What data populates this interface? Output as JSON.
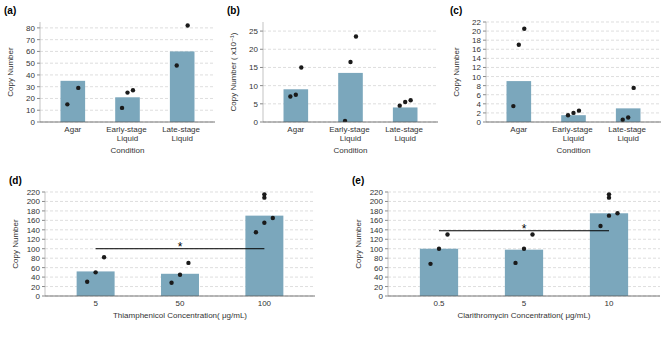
{
  "chart_data": [
    {
      "type": "bar",
      "title": "(a)",
      "categories": [
        "Agar",
        "Early-stage Liquid",
        "Late-stage Liquid"
      ],
      "values": [
        35,
        21,
        60
      ],
      "dots": [
        [
          15,
          29
        ],
        [
          12,
          25,
          27
        ],
        [
          48,
          82
        ]
      ],
      "xlabel": "Condition",
      "ylabel": "Copy Number",
      "ylim": [
        0,
        85
      ],
      "yticks": [
        0,
        10,
        20,
        30,
        40,
        50,
        60,
        70,
        80
      ],
      "color": "#7ba7bc",
      "grid": true
    },
    {
      "type": "bar",
      "title": "(b)",
      "categories": [
        "Agar",
        "Early-stage Liquid",
        "Late-stage Liquid"
      ],
      "values": [
        9,
        13.5,
        4
      ],
      "dots": [
        [
          7,
          7.5,
          15
        ],
        [
          0.3,
          16.5,
          23.5
        ],
        [
          4.5,
          5.5,
          6
        ]
      ],
      "xlabel": "Condition",
      "ylabel": "Copy Number  ( x10⁻¹)",
      "ylim": [
        0,
        27.5
      ],
      "yticks": [
        0,
        5,
        10,
        15,
        20,
        25
      ],
      "color": "#7ba7bc",
      "grid": true
    },
    {
      "type": "bar",
      "title": "(c)",
      "categories": [
        "Agar",
        "Early-stage Liquid",
        "Late-stage Liquid"
      ],
      "values": [
        9,
        1.5,
        3
      ],
      "dots": [
        [
          3.5,
          17,
          20.5
        ],
        [
          1.5,
          2,
          2.5
        ],
        [
          0.5,
          1,
          7.5
        ]
      ],
      "xlabel": "Condition",
      "ylabel": "Copy Number",
      "ylim": [
        0,
        22
      ],
      "yticks": [
        0,
        2,
        4,
        6,
        8,
        10,
        12,
        14,
        16,
        18,
        20,
        22
      ],
      "color": "#7ba7bc",
      "grid": true
    },
    {
      "type": "bar",
      "title": "(d)",
      "categories": [
        "5",
        "50",
        "100"
      ],
      "values": [
        52,
        47,
        170
      ],
      "dots": [
        [
          30,
          50,
          82
        ],
        [
          28,
          45,
          70
        ],
        [
          135,
          155,
          165
        ]
      ],
      "xlabel": "Thiamphenicol Concentration( μg/mL)",
      "ylabel": "Copy Number",
      "ylim": [
        0,
        220
      ],
      "yticks": [
        0,
        20,
        40,
        60,
        80,
        100,
        120,
        140,
        160,
        180,
        200,
        220
      ],
      "color": "#7ba7bc",
      "grid": true,
      "bracket": {
        "from": 0,
        "to": 2,
        "y": 100
      },
      "annotations": [
        {
          "text": "*",
          "x": 1,
          "y": 107
        }
      ],
      "extra_dots": {
        "x": 2,
        "values": [
          215,
          208
        ]
      }
    },
    {
      "type": "bar",
      "title": "(e)",
      "categories": [
        "0.5",
        "5",
        "10"
      ],
      "values": [
        100,
        98,
        175
      ],
      "dots": [
        [
          68,
          100,
          130
        ],
        [
          70,
          100,
          130
        ],
        [
          148,
          170,
          175
        ]
      ],
      "xlabel": "Clarithromycin Concentration( μg/mL)",
      "ylabel": "Copy Number",
      "ylim": [
        0,
        220
      ],
      "yticks": [
        0,
        20,
        40,
        60,
        80,
        100,
        120,
        140,
        160,
        180,
        200,
        220
      ],
      "color": "#7ba7bc",
      "grid": true,
      "bracket": {
        "from": 0,
        "to": 2,
        "y": 138
      },
      "annotations": [
        {
          "text": "*",
          "x": 1,
          "y": 145
        }
      ],
      "extra_dots": {
        "x": 2,
        "values": [
          215,
          208
        ]
      }
    }
  ]
}
